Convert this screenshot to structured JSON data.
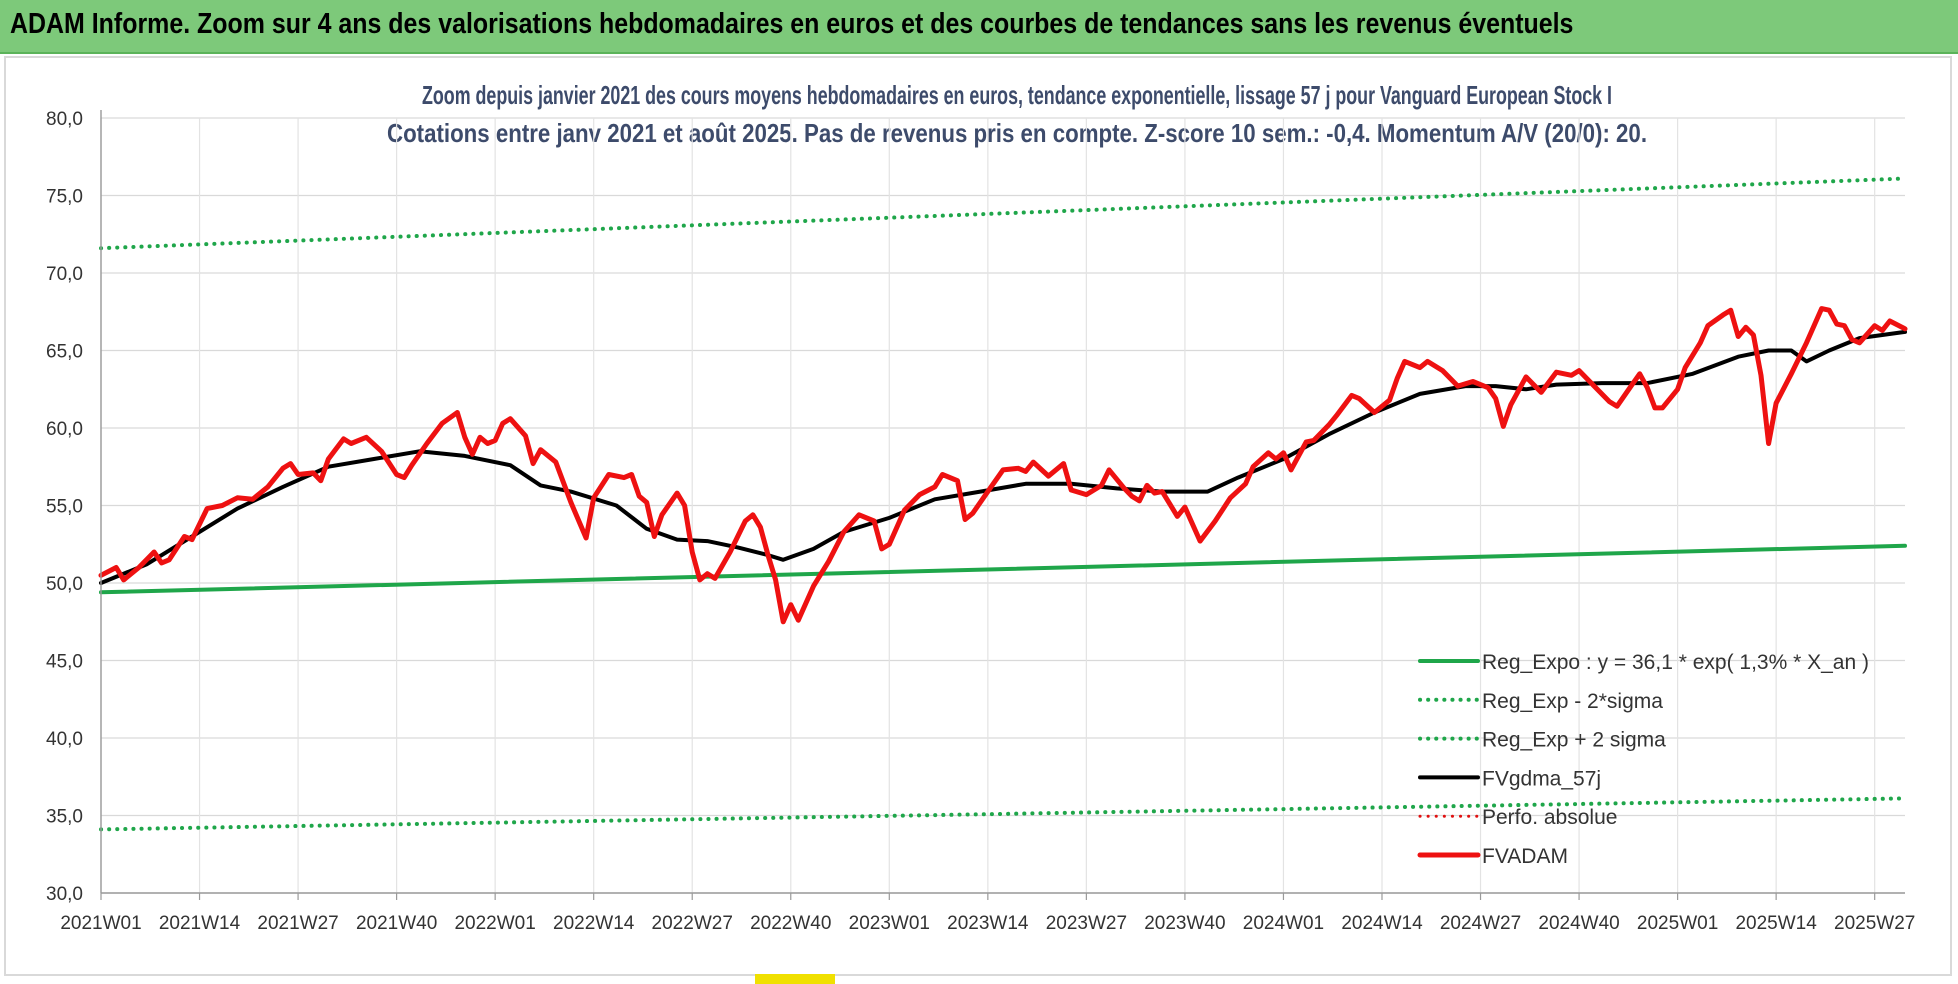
{
  "banner": {
    "title": "ADAM Informe. Zoom sur 4 ans des valorisations hebdomadaires en euros et des courbes de tendances sans les revenus éventuels"
  },
  "chart_data": {
    "type": "line",
    "title_line1": "Zoom depuis janvier 2021 des cours moyens hebdomadaires en euros, tendance exponentielle, lissage 57 j pour Vanguard European Stock I",
    "title_line2": "Cotations entre janv 2021 et août 2025.  Pas de revenus pris en compte. Z-score 10 sem.: -0,4. Momentum A/V (20/0): 20.",
    "ylim": [
      30,
      80
    ],
    "y_ticks": [
      "30,0",
      "35,0",
      "40,0",
      "45,0",
      "50,0",
      "55,0",
      "60,0",
      "65,0",
      "70,0",
      "75,0",
      "80,0"
    ],
    "x_ticks": [
      {
        "label": "2021W01",
        "week": 0
      },
      {
        "label": "2021W14",
        "week": 13
      },
      {
        "label": "2021W27",
        "week": 26
      },
      {
        "label": "2021W40",
        "week": 39
      },
      {
        "label": "2022W01",
        "week": 52
      },
      {
        "label": "2022W14",
        "week": 65
      },
      {
        "label": "2022W27",
        "week": 78
      },
      {
        "label": "2022W40",
        "week": 91
      },
      {
        "label": "2023W01",
        "week": 104
      },
      {
        "label": "2023W14",
        "week": 117
      },
      {
        "label": "2023W27",
        "week": 130
      },
      {
        "label": "2023W40",
        "week": 143
      },
      {
        "label": "2024W01",
        "week": 156
      },
      {
        "label": "2024W14",
        "week": 169
      },
      {
        "label": "2024W27",
        "week": 182
      },
      {
        "label": "2024W40",
        "week": 195
      },
      {
        "label": "2025W01",
        "week": 208
      },
      {
        "label": "2025W14",
        "week": 221
      },
      {
        "label": "2025W27",
        "week": 234
      }
    ],
    "x_max_week": 238,
    "grid": true,
    "legend_position": "bottom-right",
    "series": [
      {
        "name": "Reg_Expo : y = 36,1 * exp( 1,3% *  X_an )",
        "color": "#1fa64a",
        "style": "solid",
        "width": 4,
        "points": [
          [
            0,
            49.4
          ],
          [
            238,
            52.4
          ]
        ]
      },
      {
        "name": "Reg_Exp - 2*sigma",
        "color": "#1fa64a",
        "style": "dotted",
        "width": 4,
        "points": [
          [
            0,
            34.1
          ],
          [
            238,
            36.1
          ]
        ]
      },
      {
        "name": "Reg_Exp + 2 sigma",
        "color": "#1fa64a",
        "style": "dotted",
        "width": 4,
        "points": [
          [
            0,
            71.6
          ],
          [
            238,
            76.1
          ]
        ]
      },
      {
        "name": "FVgdma_57j",
        "color": "#000000",
        "style": "solid",
        "width": 4,
        "points": [
          [
            0,
            50.0
          ],
          [
            6,
            51.2
          ],
          [
            12,
            53.0
          ],
          [
            18,
            54.8
          ],
          [
            24,
            56.2
          ],
          [
            30,
            57.5
          ],
          [
            36,
            58.0
          ],
          [
            42,
            58.5
          ],
          [
            48,
            58.2
          ],
          [
            54,
            57.6
          ],
          [
            58,
            56.3
          ],
          [
            62,
            55.9
          ],
          [
            68,
            55.0
          ],
          [
            72,
            53.5
          ],
          [
            76,
            52.8
          ],
          [
            80,
            52.7
          ],
          [
            84,
            52.3
          ],
          [
            88,
            51.8
          ],
          [
            90,
            51.5
          ],
          [
            94,
            52.2
          ],
          [
            98,
            53.3
          ],
          [
            104,
            54.2
          ],
          [
            110,
            55.4
          ],
          [
            116,
            55.9
          ],
          [
            122,
            56.4
          ],
          [
            128,
            56.4
          ],
          [
            134,
            56.1
          ],
          [
            140,
            55.9
          ],
          [
            146,
            55.9
          ],
          [
            150,
            56.8
          ],
          [
            156,
            58.0
          ],
          [
            162,
            59.6
          ],
          [
            168,
            61.0
          ],
          [
            174,
            62.2
          ],
          [
            180,
            62.7
          ],
          [
            184,
            62.7
          ],
          [
            188,
            62.5
          ],
          [
            192,
            62.8
          ],
          [
            198,
            62.9
          ],
          [
            204,
            62.9
          ],
          [
            210,
            63.5
          ],
          [
            216,
            64.6
          ],
          [
            220,
            65.0
          ],
          [
            223,
            65.0
          ],
          [
            225,
            64.3
          ],
          [
            228,
            65.0
          ],
          [
            232,
            65.8
          ],
          [
            238,
            66.2
          ]
        ]
      },
      {
        "name": "Perfo. absolue",
        "color": "#e01010",
        "style": "dotted",
        "width": 3,
        "points": []
      },
      {
        "name": "FVADAM",
        "color": "#ee1111",
        "style": "solid",
        "width": 5,
        "points": [
          [
            0,
            50.5
          ],
          [
            2,
            51.0
          ],
          [
            3,
            50.2
          ],
          [
            5,
            51.0
          ],
          [
            7,
            52.0
          ],
          [
            8,
            51.3
          ],
          [
            9,
            51.5
          ],
          [
            11,
            53.0
          ],
          [
            12,
            52.8
          ],
          [
            14,
            54.8
          ],
          [
            16,
            55.0
          ],
          [
            18,
            55.5
          ],
          [
            20,
            55.4
          ],
          [
            22,
            56.2
          ],
          [
            24,
            57.4
          ],
          [
            25,
            57.7
          ],
          [
            26,
            57.0
          ],
          [
            28,
            57.1
          ],
          [
            29,
            56.6
          ],
          [
            30,
            58.0
          ],
          [
            32,
            59.3
          ],
          [
            33,
            59.0
          ],
          [
            35,
            59.4
          ],
          [
            37,
            58.5
          ],
          [
            39,
            57.0
          ],
          [
            40,
            56.8
          ],
          [
            41,
            57.6
          ],
          [
            43,
            59.0
          ],
          [
            45,
            60.3
          ],
          [
            47,
            61.0
          ],
          [
            48,
            59.4
          ],
          [
            49,
            58.3
          ],
          [
            50,
            59.4
          ],
          [
            51,
            59.0
          ],
          [
            52,
            59.2
          ],
          [
            53,
            60.3
          ],
          [
            54,
            60.6
          ],
          [
            56,
            59.5
          ],
          [
            57,
            57.7
          ],
          [
            58,
            58.6
          ],
          [
            60,
            57.8
          ],
          [
            62,
            55.2
          ],
          [
            64,
            52.9
          ],
          [
            65,
            55.5
          ],
          [
            67,
            57.0
          ],
          [
            69,
            56.8
          ],
          [
            70,
            57.0
          ],
          [
            71,
            55.6
          ],
          [
            72,
            55.2
          ],
          [
            73,
            53.0
          ],
          [
            74,
            54.4
          ],
          [
            76,
            55.8
          ],
          [
            77,
            55.0
          ],
          [
            78,
            52.0
          ],
          [
            79,
            50.2
          ],
          [
            80,
            50.6
          ],
          [
            81,
            50.3
          ],
          [
            83,
            52.0
          ],
          [
            85,
            54.0
          ],
          [
            86,
            54.4
          ],
          [
            87,
            53.6
          ],
          [
            88,
            51.8
          ],
          [
            89,
            50.2
          ],
          [
            90,
            47.5
          ],
          [
            91,
            48.6
          ],
          [
            92,
            47.6
          ],
          [
            94,
            49.8
          ],
          [
            96,
            51.4
          ],
          [
            98,
            53.3
          ],
          [
            100,
            54.4
          ],
          [
            102,
            54.0
          ],
          [
            103,
            52.2
          ],
          [
            104,
            52.5
          ],
          [
            106,
            54.7
          ],
          [
            108,
            55.7
          ],
          [
            110,
            56.2
          ],
          [
            111,
            57.0
          ],
          [
            113,
            56.6
          ],
          [
            114,
            54.1
          ],
          [
            115,
            54.5
          ],
          [
            117,
            55.9
          ],
          [
            119,
            57.3
          ],
          [
            121,
            57.4
          ],
          [
            122,
            57.2
          ],
          [
            123,
            57.8
          ],
          [
            125,
            56.9
          ],
          [
            127,
            57.7
          ],
          [
            128,
            56.0
          ],
          [
            130,
            55.7
          ],
          [
            132,
            56.3
          ],
          [
            133,
            57.3
          ],
          [
            135,
            56.1
          ],
          [
            136,
            55.6
          ],
          [
            137,
            55.3
          ],
          [
            138,
            56.3
          ],
          [
            139,
            55.8
          ],
          [
            140,
            55.9
          ],
          [
            141,
            55.1
          ],
          [
            142,
            54.3
          ],
          [
            143,
            54.9
          ],
          [
            145,
            52.7
          ],
          [
            147,
            54.0
          ],
          [
            149,
            55.5
          ],
          [
            151,
            56.4
          ],
          [
            152,
            57.5
          ],
          [
            154,
            58.4
          ],
          [
            155,
            58.0
          ],
          [
            156,
            58.4
          ],
          [
            157,
            57.3
          ],
          [
            158,
            58.2
          ],
          [
            159,
            59.1
          ],
          [
            160,
            59.2
          ],
          [
            162,
            60.2
          ],
          [
            163,
            60.8
          ],
          [
            165,
            62.1
          ],
          [
            166,
            61.9
          ],
          [
            168,
            61.0
          ],
          [
            170,
            61.8
          ],
          [
            171,
            63.2
          ],
          [
            172,
            64.3
          ],
          [
            174,
            63.9
          ],
          [
            175,
            64.3
          ],
          [
            177,
            63.7
          ],
          [
            179,
            62.7
          ],
          [
            181,
            63.0
          ],
          [
            183,
            62.6
          ],
          [
            184,
            61.9
          ],
          [
            185,
            60.1
          ],
          [
            186,
            61.5
          ],
          [
            188,
            63.3
          ],
          [
            190,
            62.3
          ],
          [
            192,
            63.6
          ],
          [
            194,
            63.4
          ],
          [
            195,
            63.7
          ],
          [
            197,
            62.7
          ],
          [
            199,
            61.7
          ],
          [
            200,
            61.4
          ],
          [
            202,
            62.8
          ],
          [
            203,
            63.5
          ],
          [
            204,
            62.6
          ],
          [
            205,
            61.3
          ],
          [
            206,
            61.3
          ],
          [
            208,
            62.5
          ],
          [
            209,
            63.9
          ],
          [
            211,
            65.5
          ],
          [
            212,
            66.6
          ],
          [
            214,
            67.3
          ],
          [
            215,
            67.6
          ],
          [
            216,
            65.9
          ],
          [
            217,
            66.5
          ],
          [
            218,
            66.0
          ],
          [
            219,
            63.4
          ],
          [
            220,
            59.0
          ],
          [
            221,
            61.6
          ],
          [
            223,
            63.5
          ],
          [
            225,
            65.5
          ],
          [
            227,
            67.7
          ],
          [
            228,
            67.6
          ],
          [
            229,
            66.7
          ],
          [
            230,
            66.6
          ],
          [
            231,
            65.7
          ],
          [
            232,
            65.5
          ],
          [
            234,
            66.6
          ],
          [
            235,
            66.3
          ],
          [
            236,
            66.9
          ],
          [
            238,
            66.4
          ]
        ]
      }
    ]
  }
}
